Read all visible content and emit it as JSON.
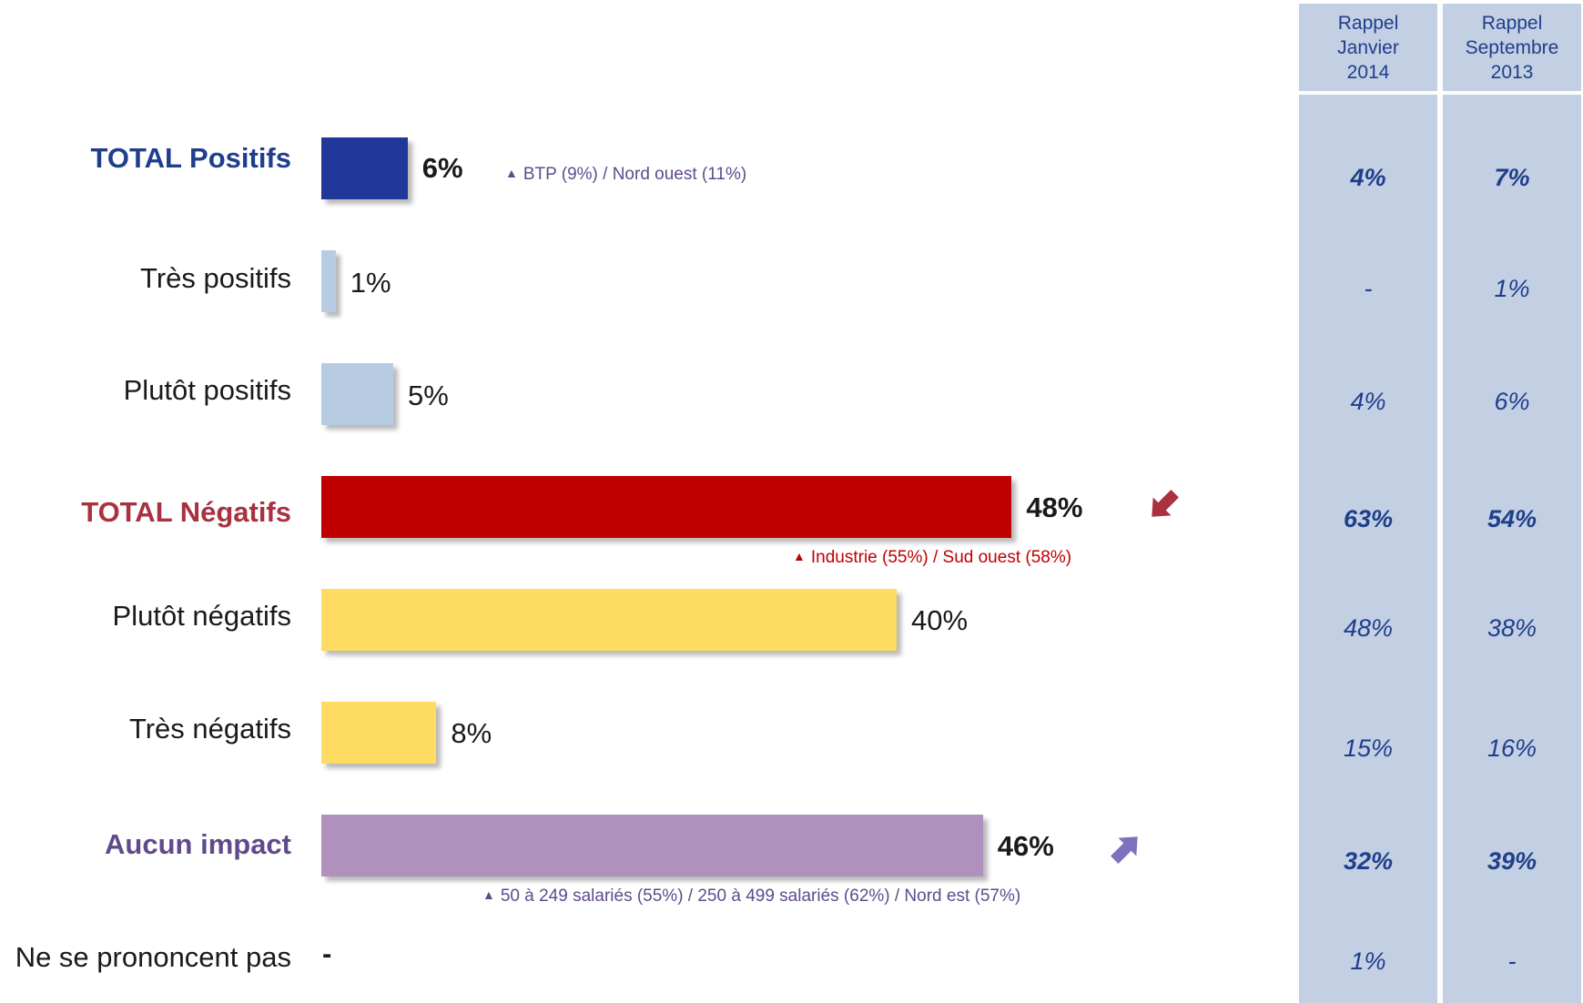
{
  "chart_data": {
    "type": "bar",
    "orientation": "horizontal",
    "unit": "%",
    "categories": [
      "TOTAL Positifs",
      "Très positifs",
      "Plutôt positifs",
      "TOTAL Négatifs",
      "Plutôt négatifs",
      "Très négatifs",
      "Aucun impact",
      "Ne se prononcent pas"
    ],
    "values": [
      6,
      1,
      5,
      48,
      40,
      8,
      46,
      null
    ],
    "value_labels": [
      "6%",
      "1%",
      "5%",
      "48%",
      "40%",
      "8%",
      "46%",
      "-"
    ],
    "bar_colors": [
      "#22379a",
      "#b7cce3",
      "#b7cce3",
      "#c00000",
      "#fddc61",
      "#fddc61",
      "#b090bd",
      null
    ],
    "recall_columns": [
      {
        "header": [
          "Rappel",
          "Janvier",
          "2014"
        ],
        "values": [
          "4%",
          "-",
          "4%",
          "63%",
          "48%",
          "15%",
          "32%",
          "1%"
        ]
      },
      {
        "header": [
          "Rappel",
          "Septembre",
          "2013"
        ],
        "values": [
          "7%",
          "1%",
          "6%",
          "54%",
          "38%",
          "16%",
          "39%",
          "-"
        ]
      }
    ],
    "annotations": [
      {
        "row": 0,
        "text": "BTP (9%) / Nord ouest (11%)"
      },
      {
        "row": 3,
        "text": "Industrie (55%) / Sud ouest (58%)"
      },
      {
        "row": 6,
        "text": "50 à 249 salariés (55%) / 250 à 499 salariés (62%) / Nord est (57%)"
      }
    ],
    "trends": [
      {
        "row": 3,
        "direction": "down",
        "color": "#a93140"
      },
      {
        "row": 6,
        "direction": "up",
        "color": "#7c72c0"
      }
    ]
  }
}
